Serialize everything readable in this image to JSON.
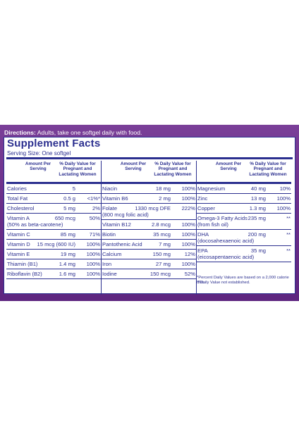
{
  "directions": {
    "label": "Directions:",
    "text": " Adults, take one softgel daily with food."
  },
  "panel": {
    "title": "Supplement Facts",
    "serving": "Serving Size: One softgel",
    "headers": {
      "amount": "Amount Per Serving",
      "dv": "% Daily Value for Pregnant and Lactating Women"
    },
    "col1": [
      {
        "name": "Calories",
        "amount": "5",
        "dv": ""
      },
      {
        "name": "Total Fat",
        "amount": "0.5 g",
        "dv": "<1%*"
      },
      {
        "name": "Cholesterol",
        "amount": "5 mg",
        "dv": "2%"
      },
      {
        "name": "Vitamin A",
        "amount": "650 mcg",
        "dv": "50%",
        "sub": "(50% as beta-carotene)"
      },
      {
        "name": "Vitamin C",
        "amount": "85 mg",
        "dv": "71%"
      },
      {
        "name": "Vitamin D",
        "amount": "15 mcg (600 IU)",
        "dv": "100%"
      },
      {
        "name": "Vitamin E",
        "amount": "19 mg",
        "dv": "100%"
      },
      {
        "name": "Thiamin (B1)",
        "amount": "1.4 mg",
        "dv": "100%"
      },
      {
        "name": "Riboflavin (B2)",
        "amount": "1.6 mg",
        "dv": "100%"
      }
    ],
    "col2": [
      {
        "name": "Niacin",
        "amount": "18 mg",
        "dv": "100%"
      },
      {
        "name": "Vitamin B6",
        "amount": "2 mg",
        "dv": "100%"
      },
      {
        "name": "Folate",
        "amount": "1330 mcg DFE",
        "dv": "222%",
        "sub": "(800 mcg folic acid)"
      },
      {
        "name": "Vitamin B12",
        "amount": "2.8 mcg",
        "dv": "100%"
      },
      {
        "name": "Biotin",
        "amount": "35 mcg",
        "dv": "100%"
      },
      {
        "name": "Pantothenic Acid",
        "amount": "7 mg",
        "dv": "100%"
      },
      {
        "name": "Calcium",
        "amount": "150 mg",
        "dv": "12%"
      },
      {
        "name": "Iron",
        "amount": "27 mg",
        "dv": "100%"
      },
      {
        "name": "Iodine",
        "amount": "150 mcg",
        "dv": "52%"
      }
    ],
    "col3": [
      {
        "name": "Magnesium",
        "amount": "40 mg",
        "dv": "10%"
      },
      {
        "name": "Zinc",
        "amount": "13 mg",
        "dv": "100%"
      },
      {
        "name": "Copper",
        "amount": "1.3 mg",
        "dv": "100%"
      },
      {
        "name": "Omega-3 Fatty Acids",
        "amount": "235 mg",
        "dv": "**",
        "sub": "(from fish oil)"
      },
      {
        "name": "DHA",
        "amount": "200 mg",
        "dv": "**",
        "sub": "(docosahexaenoic acid)"
      },
      {
        "name": "EPA",
        "amount": "35 mg",
        "dv": "**",
        "sub": "(eicosapentaenoic acid)"
      }
    ],
    "footnote1": "*Percent Daily Values are based on a 2,000 calorie diet.",
    "footnote2": "**Daily Value not established."
  }
}
